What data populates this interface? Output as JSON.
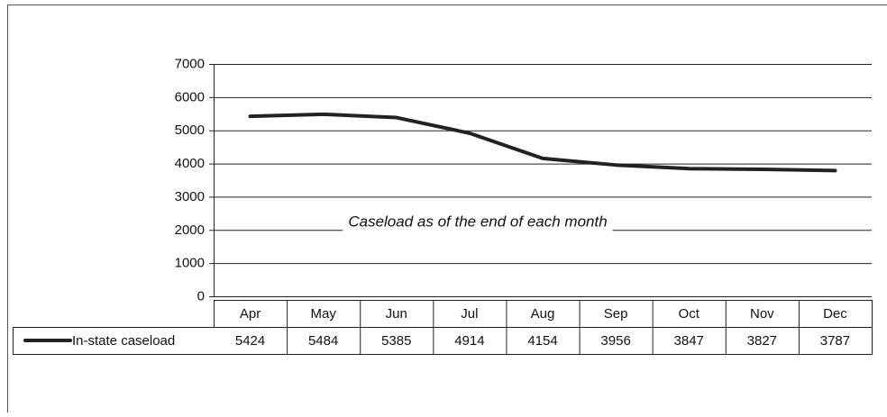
{
  "chart_data": {
    "type": "line",
    "annotation": "Caseload as of the end of each month",
    "categories": [
      "Apr",
      "May",
      "Jun",
      "Jul",
      "Aug",
      "Sep",
      "Oct",
      "Nov",
      "Dec"
    ],
    "series": [
      {
        "name": "In-state caseload",
        "color": "#222222",
        "values": [
          5424,
          5484,
          5385,
          4914,
          4154,
          3956,
          3847,
          3827,
          3787
        ]
      }
    ],
    "ylim": [
      0,
      7000
    ],
    "yticks": [
      0,
      1000,
      2000,
      3000,
      4000,
      5000,
      6000,
      7000
    ],
    "grid": true
  }
}
